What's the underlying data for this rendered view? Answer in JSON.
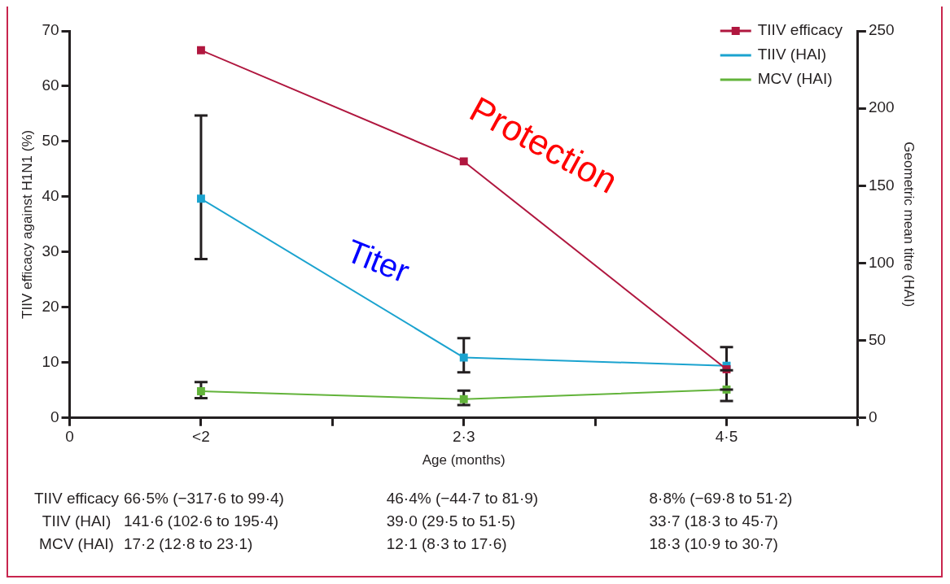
{
  "chart_data": {
    "type": "line",
    "xlabel": "Age (months)",
    "ylabel": "TIIV efficacy against H1N1 (%)",
    "y2label": "Geometric mean titre (HAI)",
    "categories": [
      "0",
      "<2",
      null,
      "2·3",
      null,
      "4·5",
      null
    ],
    "ylim": [
      0,
      70
    ],
    "yticks": [
      0,
      10,
      20,
      30,
      40,
      50,
      60,
      70
    ],
    "y2lim": [
      0,
      250
    ],
    "y2ticks": [
      0,
      50,
      100,
      150,
      200,
      250
    ],
    "series": [
      {
        "name": "TIIV efficacy",
        "color": "#b0173f",
        "values": [
          null,
          66.5,
          null,
          46.4,
          null,
          8.8,
          null
        ],
        "marker": "square"
      },
      {
        "name": "TIIV (HAI)",
        "color": "#1ba3cf",
        "axis": "y2",
        "values": [
          null,
          141.6,
          null,
          39.0,
          null,
          33.7,
          null
        ],
        "errors": [
          null,
          [
            102.6,
            195.4
          ],
          null,
          [
            29.5,
            51.5
          ],
          null,
          [
            18.3,
            45.7
          ],
          null
        ],
        "marker": "square"
      },
      {
        "name": "MCV (HAI)",
        "color": "#62b33a",
        "axis": "y2",
        "values": [
          null,
          17.2,
          null,
          12.1,
          null,
          18.3,
          null
        ],
        "errors": [
          null,
          [
            12.8,
            23.1
          ],
          null,
          [
            8.3,
            17.6
          ],
          null,
          [
            10.9,
            30.7
          ],
          null
        ],
        "marker": "square"
      }
    ],
    "annotations": [
      "Protection",
      "Titer",
      "66·5% (−317·6 to 99·4)",
      "46·4% (−44·7 to 81·9)",
      "8·8% (−69·8 to 51·2)",
      "141·6 (102·6 to 195·4)",
      "39·0 (29·5 to 51·5)",
      "33·7 (18·3 to 45·7)",
      "17·2 (12·8 to 23·1)",
      "12·1 (8·3 to 17·6)",
      "18·3 (10·9 to 30·7)"
    ],
    "grid": false,
    "legend": "top right",
    "line_style": "solid"
  }
}
